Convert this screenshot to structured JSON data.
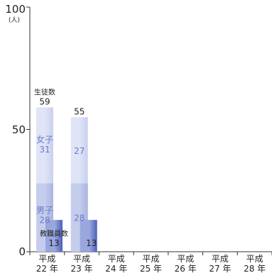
{
  "chart_data": {
    "type": "bar",
    "categories": [
      {
        "line1": "平成",
        "line2": "22 年"
      },
      {
        "line1": "平成",
        "line2": "23 年"
      },
      {
        "line1": "平成",
        "line2": "24 年"
      },
      {
        "line1": "平成",
        "line2": "25 年"
      },
      {
        "line1": "平成",
        "line2": "26 年"
      },
      {
        "line1": "平成",
        "line2": "27 年"
      },
      {
        "line1": "平成",
        "line2": "28 年"
      }
    ],
    "yticks": [
      "0",
      "50",
      "100"
    ],
    "ylim": [
      0,
      100
    ],
    "y_unit": "(人)",
    "students": {
      "label": "生徒数",
      "total": [
        59,
        55,
        null,
        null,
        null,
        null,
        null
      ],
      "female": {
        "label": "女子",
        "values": [
          31,
          27,
          null,
          null,
          null,
          null,
          null
        ]
      },
      "male": {
        "label": "男子",
        "values": [
          28,
          28,
          null,
          null,
          null,
          null,
          null
        ]
      }
    },
    "staff": {
      "label": "教職員数",
      "values": [
        13,
        13,
        null,
        null,
        null,
        null,
        null
      ]
    },
    "grid": false,
    "colors": {
      "female_light": "#dfe4f6",
      "female_dark": "#c9d0ee",
      "male_light": "#c5cdec",
      "male_dark": "#a9b4e2",
      "staff_light": "#9aa6de",
      "staff_dark": "#4a5fb8",
      "segment_label": "#6a7bc9",
      "axis": "#333333",
      "text": "#222222"
    }
  }
}
